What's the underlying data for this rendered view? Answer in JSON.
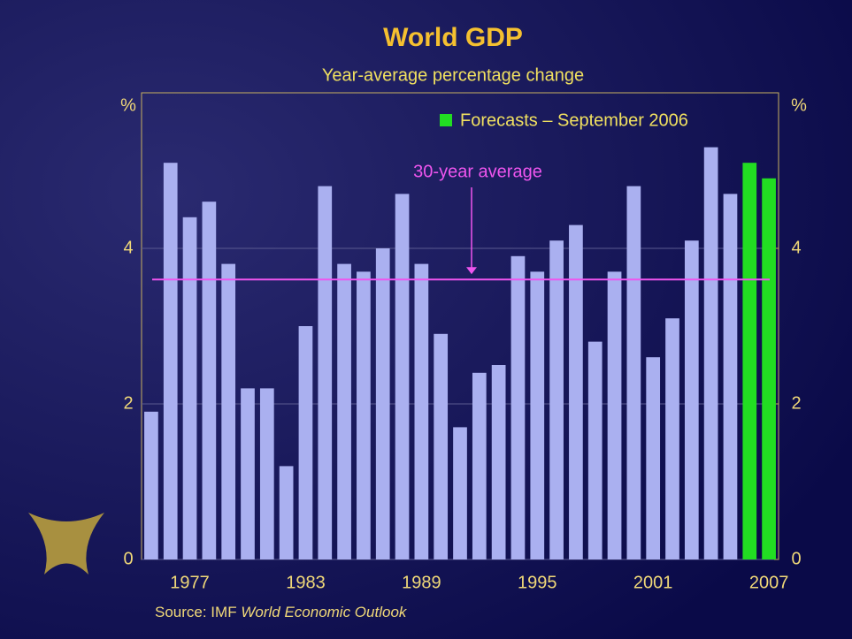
{
  "chart_data": {
    "type": "bar",
    "title": "World GDP",
    "subtitle": "Year-average percentage change",
    "ylabel": "%",
    "y2label": "%",
    "categories": [
      null,
      null,
      "1977",
      null,
      null,
      null,
      null,
      null,
      "1983",
      null,
      null,
      null,
      null,
      null,
      "1989",
      null,
      null,
      null,
      null,
      null,
      "1995",
      null,
      null,
      null,
      null,
      null,
      "2001",
      null,
      null,
      null,
      null,
      null,
      "2007"
    ],
    "series": [
      {
        "color": "#aab0f0",
        "values": [
          1.9,
          5.1,
          4.4,
          4.6,
          3.8,
          2.2,
          2.2,
          1.2,
          3.0,
          4.8,
          3.8,
          3.7,
          4.0,
          4.7,
          3.8,
          2.9,
          1.7,
          2.4,
          2.5,
          3.9,
          3.7,
          4.1,
          4.3,
          2.8,
          3.7,
          4.8,
          2.6,
          3.1,
          4.1,
          5.3,
          4.7,
          null,
          null
        ]
      },
      {
        "name": "Forecasts – September 2006",
        "color": "#22dd22",
        "values": [
          null,
          null,
          null,
          null,
          null,
          null,
          null,
          null,
          null,
          null,
          null,
          null,
          null,
          null,
          null,
          null,
          null,
          null,
          null,
          null,
          null,
          null,
          null,
          null,
          null,
          null,
          null,
          null,
          null,
          null,
          null,
          5.1,
          4.9
        ]
      }
    ],
    "reference_line": {
      "value": 3.6,
      "label": "30-year average",
      "color": "#ee55ee"
    },
    "ylim": [
      0,
      6
    ],
    "yticks": [
      0,
      2,
      4
    ],
    "y2lim": [
      0,
      6
    ],
    "y2ticks": [
      0,
      2,
      4
    ],
    "grid": true,
    "source_prefix": "Source: IMF",
    "source_title": "World Economic Outlook"
  }
}
